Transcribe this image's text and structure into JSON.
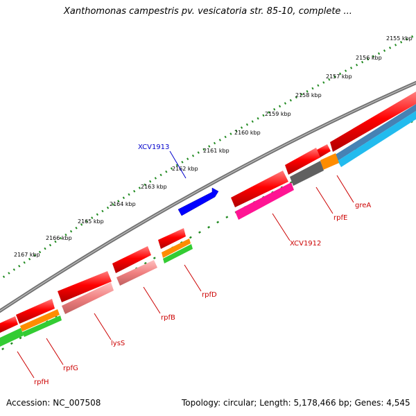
{
  "title": "Xanthomonas campestris pv. vesicatoria str. 85-10, complete ...",
  "footer": {
    "accession": "Accession: NC_007508",
    "summary": "Topology: circular; Length: 5,178,466 bp; Genes: 4,545"
  },
  "ruler_ticks": [
    "2155 kbp",
    "2156 kbp",
    "2157 kbp",
    "2158 kbp",
    "2159 kbp",
    "2160 kbp",
    "2161 kbp",
    "2162 kbp",
    "2163 kbp",
    "2164 kbp",
    "2165 kbp",
    "2166 kbp",
    "2167 kbp"
  ],
  "gene_labels": {
    "xcv1913": "XCV1913",
    "xcv1912": "XCV1912",
    "grea": "greA",
    "rpfe": "rpfE",
    "rpfd": "rpfD",
    "rpfb": "rpfB",
    "lyss": "lysS",
    "rpfg": "rpfG",
    "rpfh": "rpfH"
  },
  "colors": {
    "backbone": "#808080",
    "cds": "#ff0000",
    "gene": "#ff7f7f",
    "rna": "#ff1493",
    "dark": "#606060",
    "orange": "#ff8c00",
    "green": "#33cc33",
    "steel": "#4682b4",
    "cyan": "#22bbee",
    "selected": "#0000ff",
    "ruler": "#228b22",
    "label_red": "#cc0000",
    "label_blue": "#0000cc"
  }
}
